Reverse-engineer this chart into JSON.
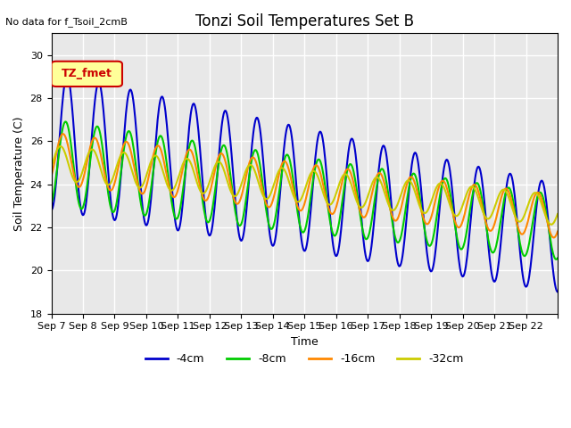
{
  "title": "Tonzi Soil Temperatures Set B",
  "xlabel": "Time",
  "ylabel": "Soil Temperature (C)",
  "ylim": [
    18,
    31
  ],
  "yticks": [
    18,
    20,
    22,
    24,
    26,
    28,
    30
  ],
  "no_data_text": "No data for f_Tsoil_2cmB",
  "legend_label_text": "TZ_fmet",
  "xtick_labels": [
    "Sep 7",
    "Sep 8",
    "Sep 9",
    "Sep 10",
    "Sep 11",
    "Sep 12",
    "Sep 13",
    "Sep 14",
    "Sep 15",
    "Sep 16",
    "Sep 17",
    "Sep 18",
    "Sep 19",
    "Sep 20",
    "Sep 21",
    "Sep 22"
  ],
  "series_colors": [
    "#0000cc",
    "#00cc00",
    "#ff8800",
    "#cccc00"
  ],
  "series_labels": [
    "-4cm",
    "-8cm",
    "-16cm",
    "-32cm"
  ],
  "line_width": 1.5,
  "bg_color": "#e8e8e8",
  "fig_bg_color": "#ffffff",
  "grid_color": "#ffffff",
  "n_days": 16,
  "pts_per_day": 48
}
